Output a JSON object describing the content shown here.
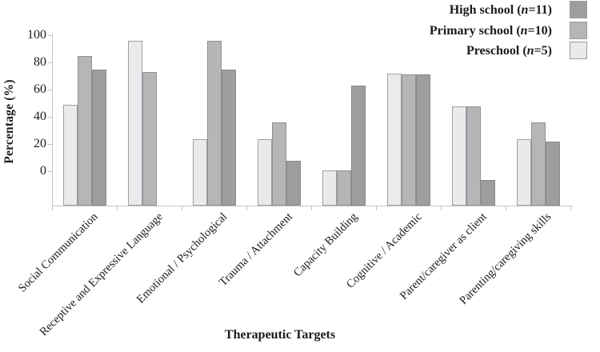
{
  "figure": {
    "x_axis_title": "Therapeutic Targets",
    "y_axis_title": "Percentage (%)"
  },
  "legend": {
    "items": [
      {
        "prefix": "High school (",
        "n_char": "n",
        "suffix": "=11)",
        "color": "#9c9ea0"
      },
      {
        "prefix": "Primary school (",
        "n_char": "n",
        "suffix": "=10)",
        "color": "#b4b6b8"
      },
      {
        "prefix": "Preschool (",
        "n_char": "n",
        "suffix": "=5)",
        "color": "#e9eaec"
      }
    ]
  },
  "chart_data": {
    "type": "bar",
    "title": "",
    "xlabel": "Therapeutic Targets",
    "ylabel": "Percentage (%)",
    "categories": [
      "Social Communication",
      "Receptive and Expressive Language",
      "Emotional / Psychological",
      "Trauma / Attachment",
      "Capacity Building",
      "Cognitive / Academic",
      "Parent/caregiver as client",
      "Parenting/caregiving skills"
    ],
    "series": [
      {
        "name": "Preschool",
        "n": 5,
        "color": "#e9eaec",
        "border": "#9ea0a3",
        "values": [
          49,
          96,
          24,
          24,
          1,
          72,
          48,
          24
        ]
      },
      {
        "name": "Primary school",
        "n": 10,
        "color": "#b4b6b8",
        "border": "#8f9194",
        "values": [
          85,
          73,
          96,
          36,
          1,
          71,
          48,
          36
        ]
      },
      {
        "name": "High school",
        "n": 11,
        "color": "#9c9ea0",
        "border": "#87898c",
        "values": [
          75,
          null,
          75,
          8,
          63,
          71,
          -6,
          22
        ]
      }
    ],
    "yticks": [
      0,
      20,
      40,
      60,
      80,
      100
    ],
    "ylim": [
      -25,
      100
    ],
    "bars_drawn_from_baseline": -25,
    "grid": false,
    "legend_position": "top-right",
    "legend_order": [
      "High school",
      "Primary school",
      "Preschool"
    ]
  }
}
